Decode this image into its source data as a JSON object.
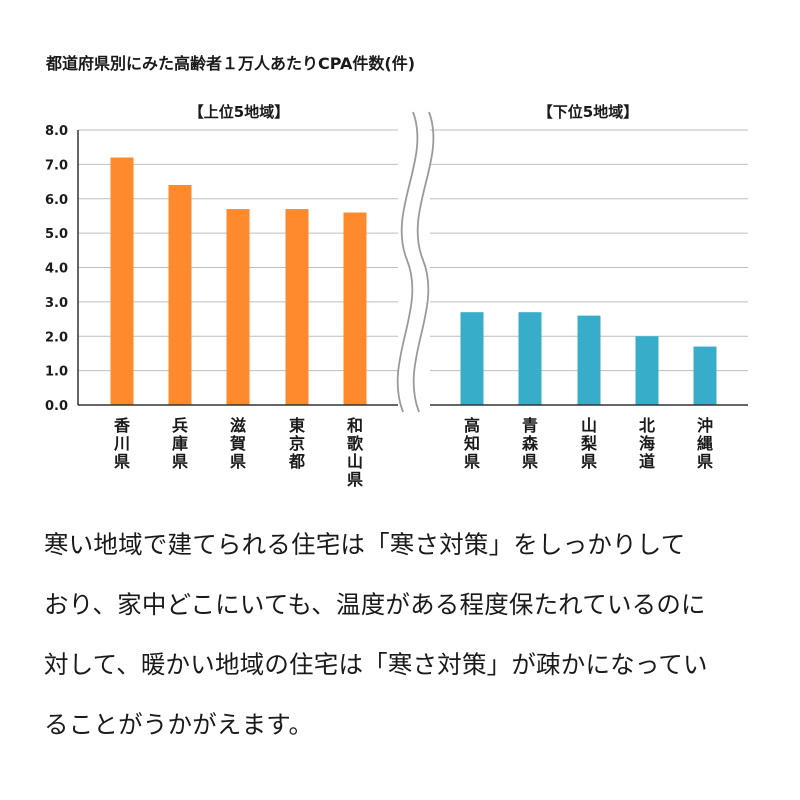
{
  "chart_data": {
    "type": "bar",
    "title": "都道府県別にみた高齢者１万人あたりCPA件数(件)",
    "ylim": [
      0,
      8
    ],
    "yticks": [
      "0.0",
      "1.0",
      "2.0",
      "3.0",
      "4.0",
      "5.0",
      "6.0",
      "7.0",
      "8.0"
    ],
    "grid": true,
    "axis_break": true,
    "groups": [
      {
        "label": "【上位5地域】",
        "color": "#ff8a2e",
        "categories": [
          "香川県",
          "兵庫県",
          "滋賀県",
          "東京都",
          "和歌山県"
        ],
        "values": [
          7.2,
          6.4,
          5.7,
          5.7,
          5.6
        ]
      },
      {
        "label": "【下位5地域】",
        "color": "#38adc9",
        "categories": [
          "高知県",
          "青森県",
          "山梨県",
          "北海道",
          "沖縄県"
        ],
        "values": [
          2.7,
          2.7,
          2.6,
          2.0,
          1.7
        ]
      }
    ]
  },
  "caption": {
    "lines": [
      "寒い地域で建てられる住宅は「寒さ対策」をしっかりして",
      "おり、家中どこにいても、温度がある程度保たれているのに",
      "対して、暖かい地域の住宅は「寒さ対策」が疎かになってい",
      "ることがうかがえます。"
    ]
  },
  "colors": {
    "grid": "#bfbfbf",
    "axis": "#333333",
    "text": "#1a1a1a"
  }
}
